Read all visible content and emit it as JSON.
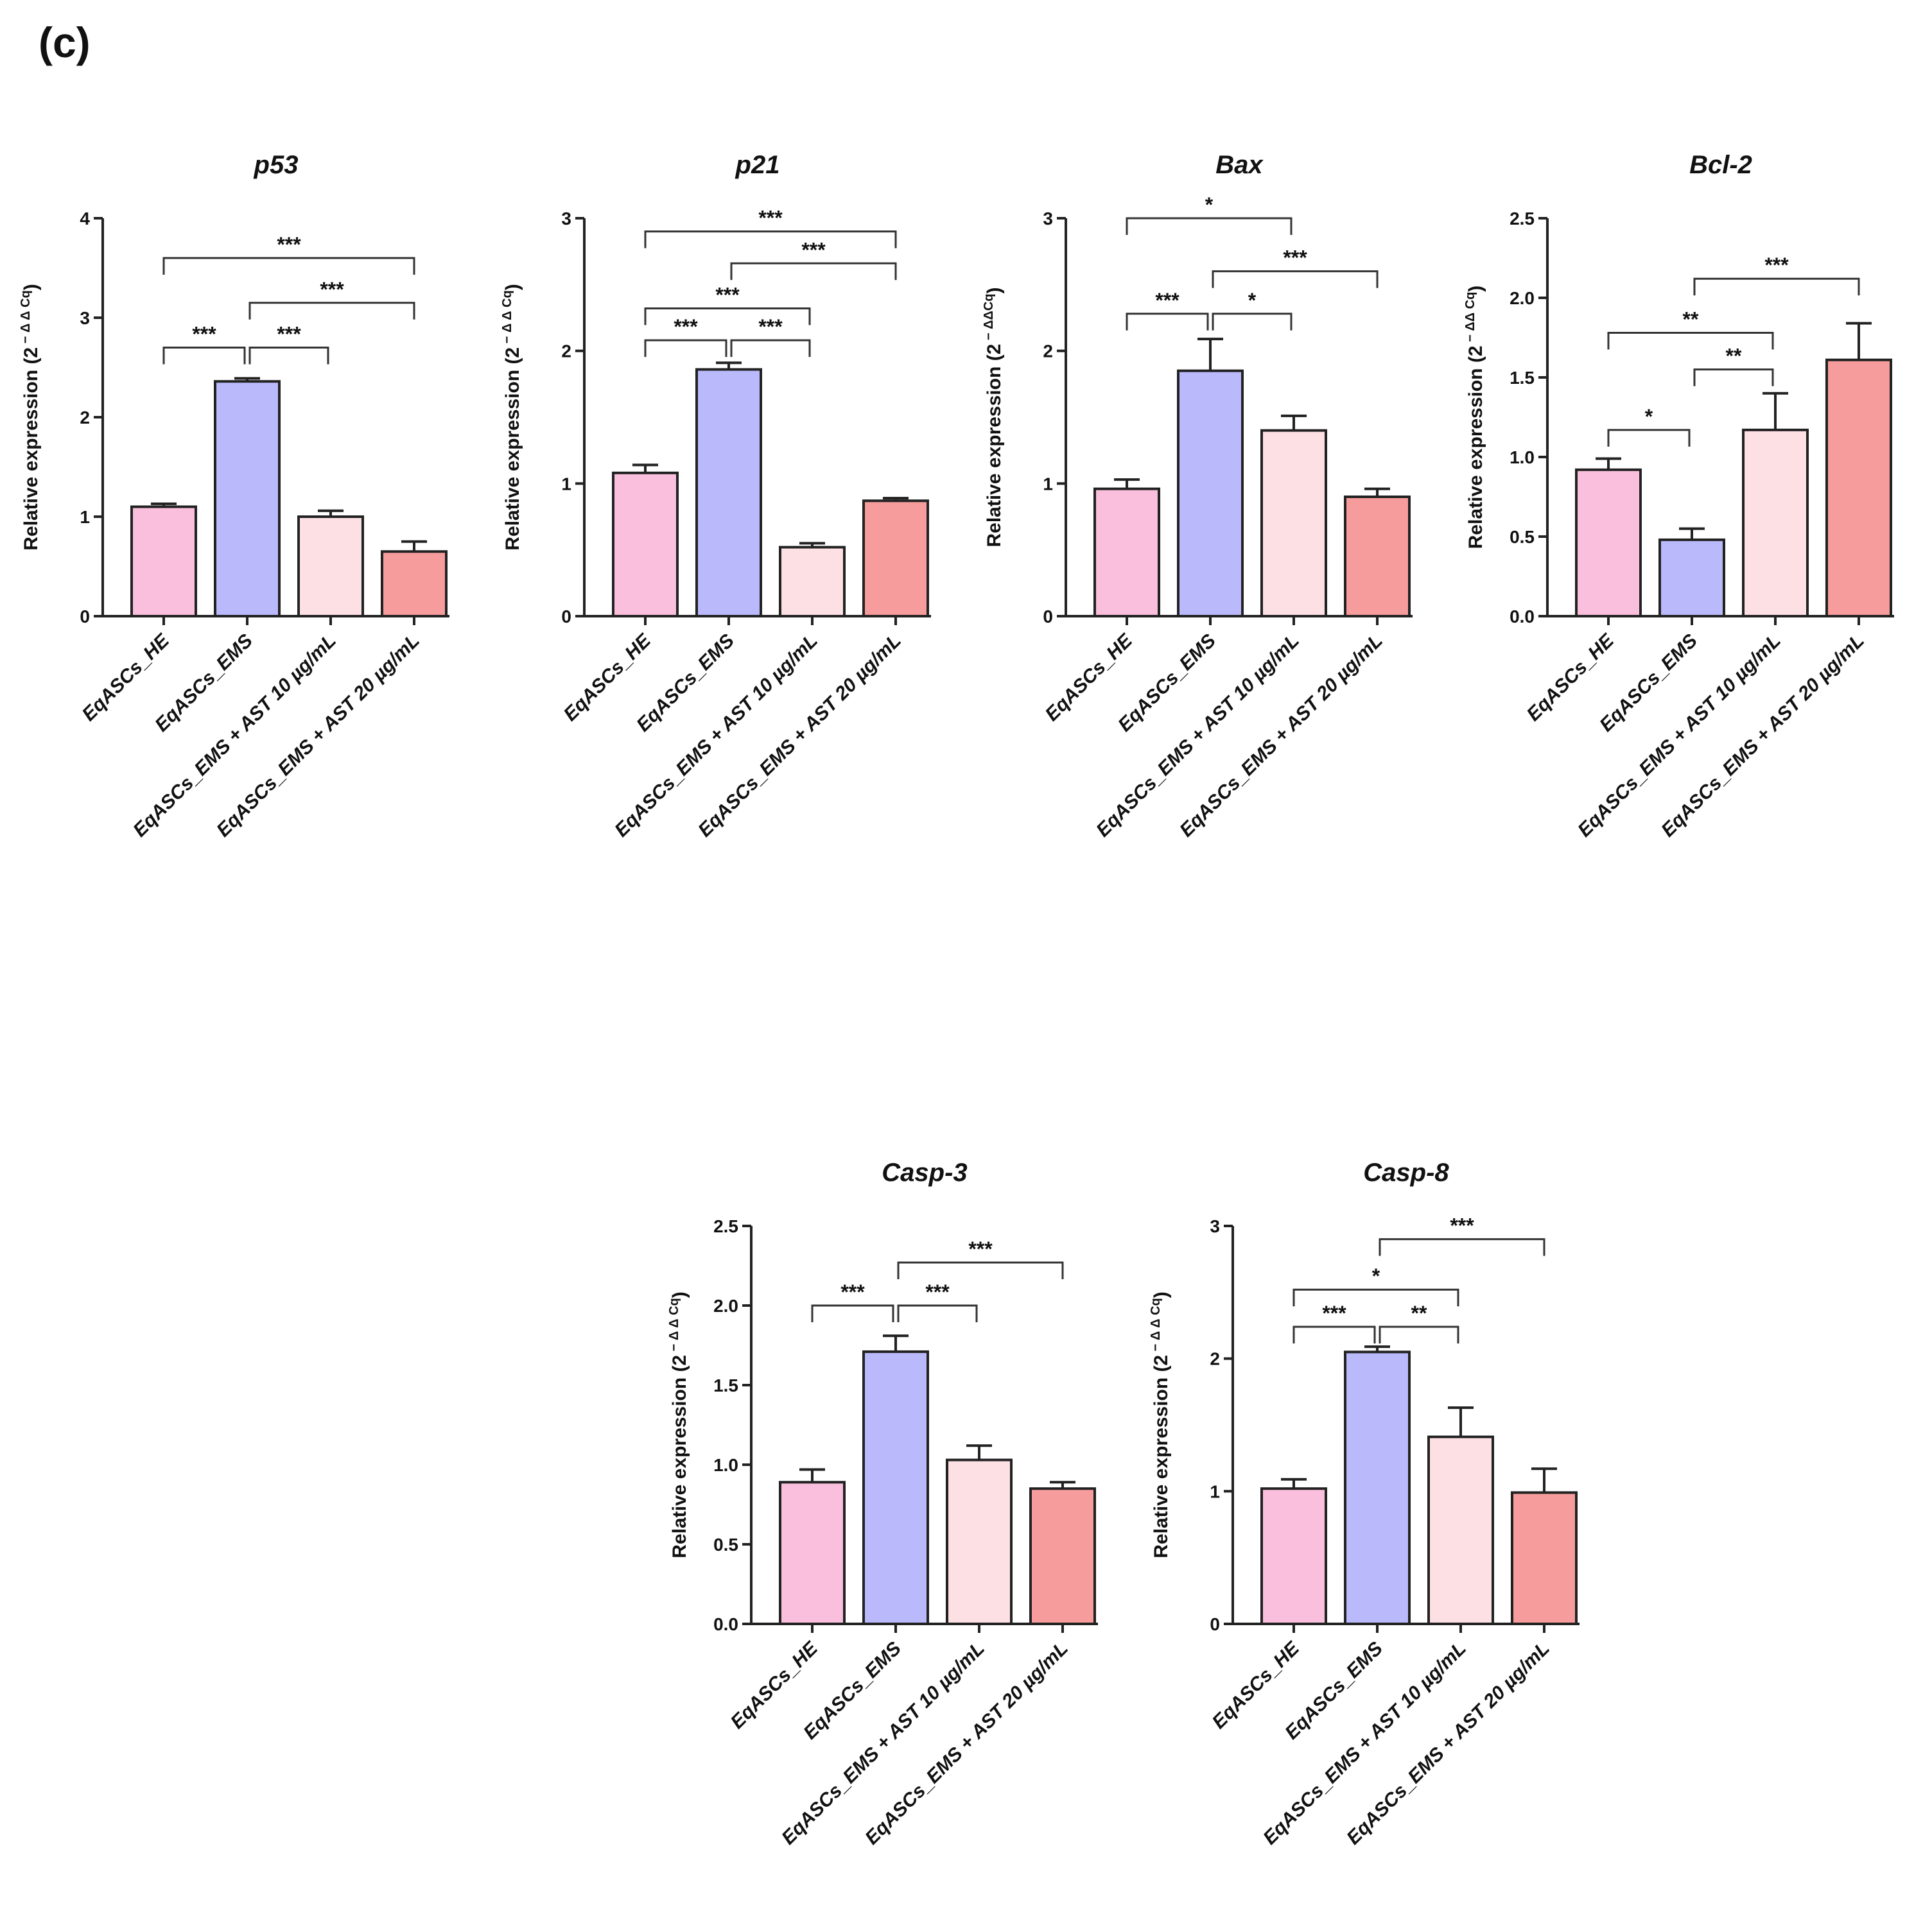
{
  "panel_label": "(c)",
  "colors": [
    "#f9bfdd",
    "#b9b9fb",
    "#fde0e4",
    "#f79c9c"
  ],
  "chart_data": [
    {
      "type": "bar",
      "title": "p53",
      "ylabel": "Relative expression (2",
      "ylabel_exp": "− Δ Δ Cq",
      "ylabel_close": ")",
      "categories": [
        "EqASCs_HE",
        "EqASCs_EMS",
        "EqASCs_EMS + AST 10 µg/mL",
        "EqASCs_EMS + AST 20 µg/mL"
      ],
      "values": [
        1.1,
        2.36,
        1.0,
        0.65
      ],
      "errors": [
        0.03,
        0.03,
        0.06,
        0.1
      ],
      "ylim": [
        0,
        4
      ],
      "yticks": [
        0,
        1,
        2,
        3,
        4
      ],
      "tick_labels": [
        "0",
        "1",
        "2",
        "3",
        "4"
      ],
      "significance": [
        {
          "from": 0,
          "to": 3,
          "label": "***",
          "y": 3.6
        },
        {
          "from": 1,
          "to": 3,
          "label": "***",
          "y": 3.15
        },
        {
          "from": 0,
          "to": 1,
          "label": "***",
          "y": 2.7
        },
        {
          "from": 1,
          "to": 2,
          "label": "***",
          "y": 2.7
        }
      ]
    },
    {
      "type": "bar",
      "title": "p21",
      "ylabel": "Relative expression (2",
      "ylabel_exp": "− Δ Δ Cq",
      "ylabel_close": ")",
      "categories": [
        "EqASCs_HE",
        "EqASCs_EMS",
        "EqASCs_EMS + AST 10 µg/mL",
        "EqASCs_EMS + AST 20 µg/mL"
      ],
      "values": [
        1.08,
        1.86,
        0.52,
        0.87
      ],
      "errors": [
        0.06,
        0.05,
        0.03,
        0.02
      ],
      "ylim": [
        0,
        3
      ],
      "yticks": [
        0,
        1,
        2,
        3
      ],
      "tick_labels": [
        "0",
        "1",
        "2",
        "3"
      ],
      "significance": [
        {
          "from": 0,
          "to": 3,
          "label": "***",
          "y": 2.9
        },
        {
          "from": 1,
          "to": 3,
          "label": "***",
          "y": 2.66
        },
        {
          "from": 0,
          "to": 2,
          "label": "***",
          "y": 2.32
        },
        {
          "from": 0,
          "to": 1,
          "label": "***",
          "y": 2.08
        },
        {
          "from": 1,
          "to": 2,
          "label": "***",
          "y": 2.08
        }
      ]
    },
    {
      "type": "bar",
      "title": "Bax",
      "ylabel": "Relative expression (2",
      "ylabel_exp": "− ΔΔCq",
      "ylabel_close": ")",
      "categories": [
        "EqASCs_HE",
        "EqASCs_EMS",
        "EqASCs_EMS + AST 10 µg/mL",
        "EqASCs_EMS + AST 20 µg/mL"
      ],
      "values": [
        0.96,
        1.85,
        1.4,
        0.9
      ],
      "errors": [
        0.07,
        0.24,
        0.11,
        0.06
      ],
      "ylim": [
        0,
        3
      ],
      "yticks": [
        0,
        1,
        2,
        3
      ],
      "tick_labels": [
        "0",
        "1",
        "2",
        "3"
      ],
      "significance": [
        {
          "from": 0,
          "to": 2,
          "label": "*",
          "y": 3.0
        },
        {
          "from": 1,
          "to": 3,
          "label": "***",
          "y": 2.6
        },
        {
          "from": 0,
          "to": 1,
          "label": "***",
          "y": 2.28
        },
        {
          "from": 1,
          "to": 2,
          "label": "*",
          "y": 2.28
        }
      ]
    },
    {
      "type": "bar",
      "title": "Bcl-2",
      "ylabel": "Relative expression (2",
      "ylabel_exp": "− ΔΔ Cq",
      "ylabel_close": ")",
      "categories": [
        "EqASCs_HE",
        "EqASCs_EMS",
        "EqASCs_EMS + AST 10 µg/mL",
        "EqASCs_EMS + AST 20 µg/mL"
      ],
      "values": [
        0.92,
        0.48,
        1.17,
        1.61
      ],
      "errors": [
        0.07,
        0.07,
        0.23,
        0.23
      ],
      "ylim": [
        0,
        2.5
      ],
      "yticks": [
        0,
        0.5,
        1.0,
        1.5,
        2.0,
        2.5
      ],
      "tick_labels": [
        "0.0",
        "0.5",
        "1.0",
        "1.5",
        "2.0",
        "2.5"
      ],
      "significance": [
        {
          "from": 1,
          "to": 3,
          "label": "***",
          "y": 2.12
        },
        {
          "from": 0,
          "to": 2,
          "label": "**",
          "y": 1.78
        },
        {
          "from": 1,
          "to": 2,
          "label": "**",
          "y": 1.55
        },
        {
          "from": 0,
          "to": 1,
          "label": "*",
          "y": 1.17
        }
      ]
    },
    {
      "type": "bar",
      "title": "Casp-3",
      "ylabel": "Relative expression (2",
      "ylabel_exp": "− Δ Δ Cq",
      "ylabel_close": ")",
      "categories": [
        "EqASCs_HE",
        "EqASCs_EMS",
        "EqASCs_EMS + AST 10 µg/mL",
        "EqASCs_EMS + AST 20 µg/mL"
      ],
      "values": [
        0.89,
        1.71,
        1.03,
        0.85
      ],
      "errors": [
        0.08,
        0.1,
        0.09,
        0.04
      ],
      "ylim": [
        0,
        2.5
      ],
      "yticks": [
        0,
        0.5,
        1.0,
        1.5,
        2.0,
        2.5
      ],
      "tick_labels": [
        "0.0",
        "0.5",
        "1.0",
        "1.5",
        "2.0",
        "2.5"
      ],
      "significance": [
        {
          "from": 1,
          "to": 3,
          "label": "***",
          "y": 2.27
        },
        {
          "from": 0,
          "to": 1,
          "label": "***",
          "y": 2.0
        },
        {
          "from": 1,
          "to": 2,
          "label": "***",
          "y": 2.0
        }
      ]
    },
    {
      "type": "bar",
      "title": "Casp-8",
      "ylabel": "Relative expression (2",
      "ylabel_exp": "− Δ Δ Cq",
      "ylabel_close": ")",
      "categories": [
        "EqASCs_HE",
        "EqASCs_EMS",
        "EqASCs_EMS + AST 10 µg/mL",
        "EqASCs_EMS + AST 20 µg/mL"
      ],
      "values": [
        1.02,
        2.05,
        1.41,
        0.99
      ],
      "errors": [
        0.07,
        0.04,
        0.22,
        0.18
      ],
      "ylim": [
        0,
        3
      ],
      "yticks": [
        0,
        1,
        2,
        3
      ],
      "tick_labels": [
        "0",
        "1",
        "2",
        "3"
      ],
      "significance": [
        {
          "from": 1,
          "to": 3,
          "label": "***",
          "y": 2.9
        },
        {
          "from": 0,
          "to": 2,
          "label": "*",
          "y": 2.52
        },
        {
          "from": 0,
          "to": 1,
          "label": "***",
          "y": 2.24
        },
        {
          "from": 1,
          "to": 2,
          "label": "**",
          "y": 2.24
        }
      ]
    }
  ]
}
